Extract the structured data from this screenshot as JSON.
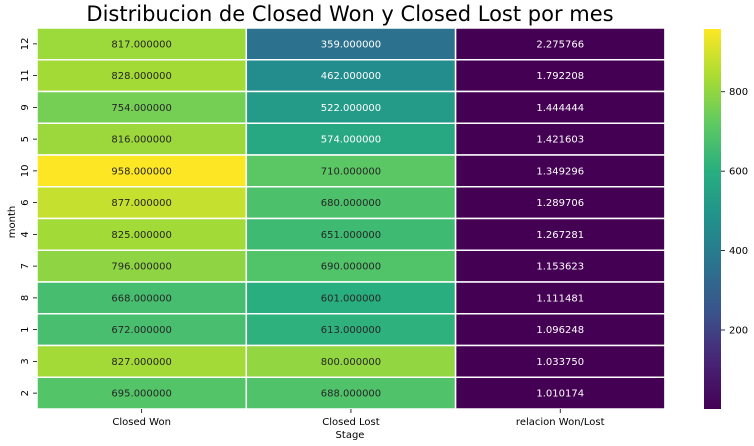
{
  "chart_data": {
    "type": "heatmap",
    "title": "Distribucion de Closed Won y Closed Lost por mes",
    "xlabel": "Stage",
    "ylabel": "month",
    "columns": [
      "Closed Won",
      "Closed Lost",
      "relacion Won/Lost"
    ],
    "rows": [
      "12",
      "11",
      "9",
      "5",
      "10",
      "6",
      "4",
      "7",
      "8",
      "1",
      "3",
      "2"
    ],
    "values": [
      [
        817.0,
        359.0,
        2.275766
      ],
      [
        828.0,
        462.0,
        1.792208
      ],
      [
        754.0,
        522.0,
        1.444444
      ],
      [
        816.0,
        574.0,
        1.421603
      ],
      [
        958.0,
        710.0,
        1.349296
      ],
      [
        877.0,
        680.0,
        1.289706
      ],
      [
        825.0,
        651.0,
        1.267281
      ],
      [
        796.0,
        690.0,
        1.153623
      ],
      [
        668.0,
        601.0,
        1.111481
      ],
      [
        672.0,
        613.0,
        1.096248
      ],
      [
        827.0,
        800.0,
        1.03375
      ],
      [
        695.0,
        688.0,
        1.010174
      ]
    ],
    "labels": [
      [
        "817.000000",
        "359.000000",
        "2.275766"
      ],
      [
        "828.000000",
        "462.000000",
        "1.792208"
      ],
      [
        "754.000000",
        "522.000000",
        "1.444444"
      ],
      [
        "816.000000",
        "574.000000",
        "1.421603"
      ],
      [
        "958.000000",
        "710.000000",
        "1.349296"
      ],
      [
        "877.000000",
        "680.000000",
        "1.289706"
      ],
      [
        "825.000000",
        "651.000000",
        "1.267281"
      ],
      [
        "796.000000",
        "690.000000",
        "1.153623"
      ],
      [
        "668.000000",
        "601.000000",
        "1.111481"
      ],
      [
        "672.000000",
        "613.000000",
        "1.096248"
      ],
      [
        "827.000000",
        "800.000000",
        "1.033750"
      ],
      [
        "695.000000",
        "688.000000",
        "1.010174"
      ]
    ],
    "colormap": "viridis",
    "vmin": 1.010174,
    "vmax": 958.0,
    "colorbar_ticks": [
      200,
      400,
      600,
      800
    ],
    "grid_line_color": "#ffffff"
  }
}
